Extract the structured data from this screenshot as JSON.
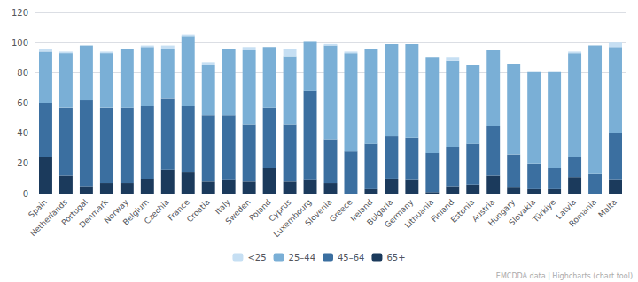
{
  "chart_data": {
    "type": "bar",
    "stacked": true,
    "categories": [
      "Spain",
      "Netherlands",
      "Portugal",
      "Denmark",
      "Norway",
      "Belgium",
      "Czechia",
      "France",
      "Croatia",
      "Italy",
      "Sweden",
      "Poland",
      "Cyprus",
      "Luxembourg",
      "Slovenia",
      "Greece",
      "Ireland",
      "Bulgaria",
      "Germany",
      "Lithuania",
      "Finland",
      "Estonia",
      "Austria",
      "Hungary",
      "Slovakia",
      "Türkiye",
      "Latvia",
      "Romania",
      "Malta"
    ],
    "series": [
      {
        "name": "65+",
        "color": "#1b3a5c",
        "values": [
          24,
          12,
          5,
          7,
          7,
          10,
          16,
          14,
          8,
          9,
          8,
          17,
          8,
          9,
          7,
          0,
          3,
          10,
          9,
          1,
          5,
          6,
          12,
          4,
          3,
          3,
          11,
          0,
          9
        ]
      },
      {
        "name": "45–64",
        "color": "#3b6fa0",
        "values": [
          36,
          45,
          57,
          50,
          50,
          48,
          47,
          44,
          44,
          43,
          38,
          40,
          38,
          59,
          29,
          28,
          30,
          28,
          28,
          26,
          26,
          27,
          33,
          22,
          17,
          14,
          13,
          13,
          31
        ]
      },
      {
        "name": "25–44",
        "color": "#7aafd6",
        "values": [
          34,
          36,
          36,
          36,
          39,
          39,
          33,
          46,
          33,
          44,
          49,
          40,
          45,
          33,
          62,
          65,
          63,
          61,
          62,
          63,
          57,
          52,
          50,
          60,
          61,
          64,
          69,
          85,
          57
        ]
      },
      {
        "name": "<25",
        "color": "#c6dff3",
        "values": [
          2,
          1,
          0,
          1,
          0,
          1,
          2,
          1,
          2,
          0,
          2,
          0,
          5,
          0,
          1,
          1,
          0,
          0,
          0,
          0,
          2,
          0,
          0,
          0,
          0,
          0,
          1,
          0,
          3
        ]
      }
    ],
    "ylim": [
      0,
      120
    ],
    "yticks": [
      0,
      20,
      40,
      60,
      80,
      100,
      120
    ],
    "grid": true,
    "legend": "bottom",
    "annotations": [
      "EMCDDA data | Highcharts (chart tool)"
    ]
  }
}
